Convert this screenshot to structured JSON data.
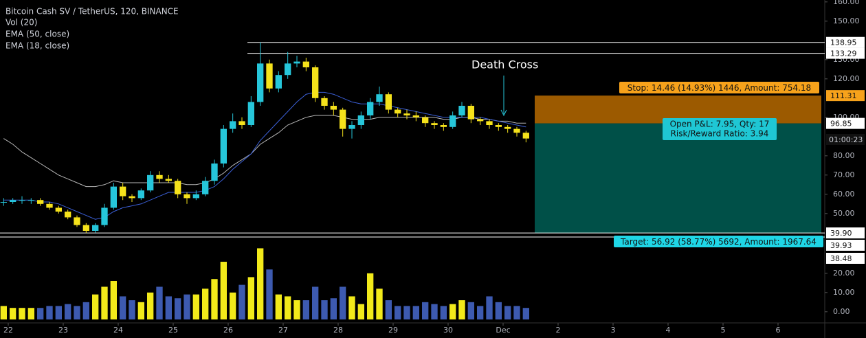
{
  "chart_data": {
    "type": "candlestick",
    "title": "Bitcoin Cash SV / TetherUS, 120, BINANCE",
    "volume_title": "Vol (20)",
    "x": [
      -2,
      2,
      6,
      10,
      14,
      18,
      22,
      26,
      30,
      34,
      38,
      42,
      46,
      50,
      54,
      58,
      62,
      66,
      70,
      74,
      78,
      82,
      86,
      90,
      94,
      98,
      102,
      106,
      110,
      114,
      118,
      122,
      126,
      130,
      134,
      138,
      142,
      146,
      150,
      154,
      158,
      162,
      166,
      170,
      174,
      178,
      182,
      186,
      190,
      194,
      198,
      202,
      206,
      210,
      214,
      218,
      222,
      226
    ],
    "open": [
      56,
      56,
      57,
      57,
      57,
      55,
      53,
      51,
      48,
      44,
      41,
      44,
      53,
      64,
      59,
      58,
      62,
      70,
      68,
      67,
      60,
      58,
      60,
      67,
      76,
      94,
      98,
      96,
      108,
      128,
      115,
      122,
      128,
      129,
      126,
      110,
      106,
      104,
      94,
      96,
      101,
      108,
      112,
      104,
      102,
      101,
      100,
      97,
      96,
      95,
      101,
      106,
      99,
      98,
      96,
      95,
      94,
      92
    ],
    "high": [
      58,
      58,
      59,
      58,
      58,
      56,
      54,
      52,
      49,
      45,
      45,
      55,
      66,
      66,
      60,
      63,
      72,
      72,
      70,
      68,
      61,
      62,
      69,
      78,
      96,
      102,
      100,
      111,
      139,
      130,
      124,
      134,
      132,
      131,
      127,
      111,
      108,
      105,
      98,
      103,
      110,
      116,
      113,
      105,
      104,
      103,
      101,
      98,
      97,
      103,
      108,
      107,
      100,
      99,
      97,
      96,
      95,
      93
    ],
    "low": [
      54,
      55,
      55,
      55,
      54,
      52,
      50,
      47,
      43,
      39.9,
      40,
      43,
      52,
      57,
      56,
      57,
      61,
      66,
      66,
      58,
      55,
      57,
      59,
      65,
      74,
      92,
      94,
      95,
      106,
      113,
      113,
      120,
      126,
      124,
      108,
      104,
      101,
      90,
      89,
      94,
      99,
      106,
      102,
      100,
      99,
      98,
      95,
      94,
      93,
      94,
      100,
      97,
      96,
      94,
      93,
      92,
      90,
      87
    ],
    "close": [
      56,
      57,
      57,
      57,
      55,
      53,
      51,
      48,
      44,
      41,
      44,
      53,
      64,
      59,
      58,
      62,
      70,
      68,
      67,
      60,
      58,
      60,
      67,
      76,
      94,
      98,
      96,
      108,
      128,
      115,
      122,
      128,
      129,
      126,
      110,
      106,
      104,
      94,
      96,
      101,
      108,
      112,
      104,
      102,
      101,
      100,
      97,
      96,
      95,
      101,
      106,
      99,
      98,
      96,
      95,
      94,
      92,
      89
    ],
    "volume": [
      3,
      2,
      2,
      2,
      2,
      3,
      3,
      4,
      3,
      5,
      9,
      13,
      16,
      8,
      6,
      5,
      10,
      13,
      8,
      7,
      9,
      9,
      12,
      17,
      26,
      10,
      14,
      18,
      33,
      22,
      9,
      8,
      6,
      6,
      13,
      6,
      7,
      13,
      8,
      4,
      20,
      12,
      6,
      3,
      3,
      3,
      5,
      4,
      3,
      4,
      6,
      5,
      3,
      8,
      5,
      3,
      3,
      2
    ],
    "up_color": "#26c6da",
    "down_color": "#f5e21b",
    "volume_up_color": "#f2ea1a",
    "volume_down_color": "#3d5ab0",
    "series": [
      {
        "name": "EMA (50, close)",
        "color": "#b8b8b8",
        "values": [
          89,
          86,
          82,
          79,
          76,
          73,
          70,
          68,
          66,
          64,
          64,
          65,
          67,
          66,
          66,
          66,
          66,
          66,
          66,
          66,
          65,
          65,
          66,
          68,
          71,
          75,
          78,
          81,
          86,
          89,
          92,
          96,
          98,
          100,
          101,
          101,
          101,
          100,
          99,
          99,
          99,
          100,
          100,
          100,
          100,
          100,
          100,
          100,
          99,
          99,
          100,
          100,
          99,
          99,
          98,
          98,
          97,
          97
        ]
      },
      {
        "name": "EMA (18, close)",
        "color": "#3b5fd6",
        "values": [
          57,
          57,
          57,
          57,
          56,
          56,
          55,
          53,
          51,
          49,
          47,
          48,
          51,
          53,
          54,
          55,
          57,
          59,
          61,
          61,
          61,
          61,
          62,
          64,
          68,
          73,
          77,
          81,
          88,
          93,
          98,
          103,
          108,
          112,
          113,
          113,
          112,
          110,
          108,
          107,
          107,
          107,
          106,
          105,
          104,
          103,
          102,
          101,
          100,
          100,
          100,
          100,
          100,
          99,
          98,
          97,
          96,
          95
        ]
      }
    ],
    "xlim": [
      -3.6,
      354.9
    ],
    "xticks": [
      {
        "value": 0,
        "label": "22"
      },
      {
        "value": 24,
        "label": "23"
      },
      {
        "value": 48,
        "label": "24"
      },
      {
        "value": 72,
        "label": "25"
      },
      {
        "value": 96,
        "label": "26"
      },
      {
        "value": 120,
        "label": "27"
      },
      {
        "value": 144,
        "label": "28"
      },
      {
        "value": 168,
        "label": "29"
      },
      {
        "value": 192,
        "label": "30"
      },
      {
        "value": 216,
        "label": "Dec"
      },
      {
        "value": 240,
        "label": "2"
      },
      {
        "value": 264,
        "label": "3"
      },
      {
        "value": 288,
        "label": "4"
      },
      {
        "value": 312,
        "label": "5"
      },
      {
        "value": 336,
        "label": "6"
      }
    ],
    "ylim": [
      38.5,
      161
    ],
    "yticks": [
      {
        "value": 160,
        "label": "160.00"
      },
      {
        "value": 150,
        "label": "150.00"
      },
      {
        "value": 130,
        "label": "130.00"
      },
      {
        "value": 120,
        "label": "120.00"
      },
      {
        "value": 100,
        "label": "100.00"
      },
      {
        "value": 80,
        "label": "80.00"
      },
      {
        "value": 70,
        "label": "70.00"
      },
      {
        "value": 60,
        "label": "60.00"
      },
      {
        "value": 50,
        "label": "50.00"
      }
    ],
    "volume_ylim": [
      -4,
      37.8
    ],
    "volume_yticks": [
      {
        "value": 20,
        "label": "20.00"
      },
      {
        "value": 10,
        "label": "10.00"
      },
      {
        "value": 0,
        "label": "0.00"
      }
    ],
    "price_labels": [
      138.95,
      133.29,
      111.31,
      96.85,
      {
        "value": 39.9,
        "label": "39.90"
      }
    ],
    "countdown": "01:00:23",
    "volume_labels": [
      "39.93",
      "38.48"
    ],
    "annotation": "Death Cross",
    "position": {
      "stop_label": "Stop: 14.46 (14.93%) 1446, Amount: 754.18",
      "pnl_label": "Open P&L: 7.95, Qty: 17",
      "ratio_label": "Risk/Reward Ratio: 3.94",
      "target_label": "Target: 56.92 (58.77%) 5692, Amount: 1967.64"
    }
  }
}
